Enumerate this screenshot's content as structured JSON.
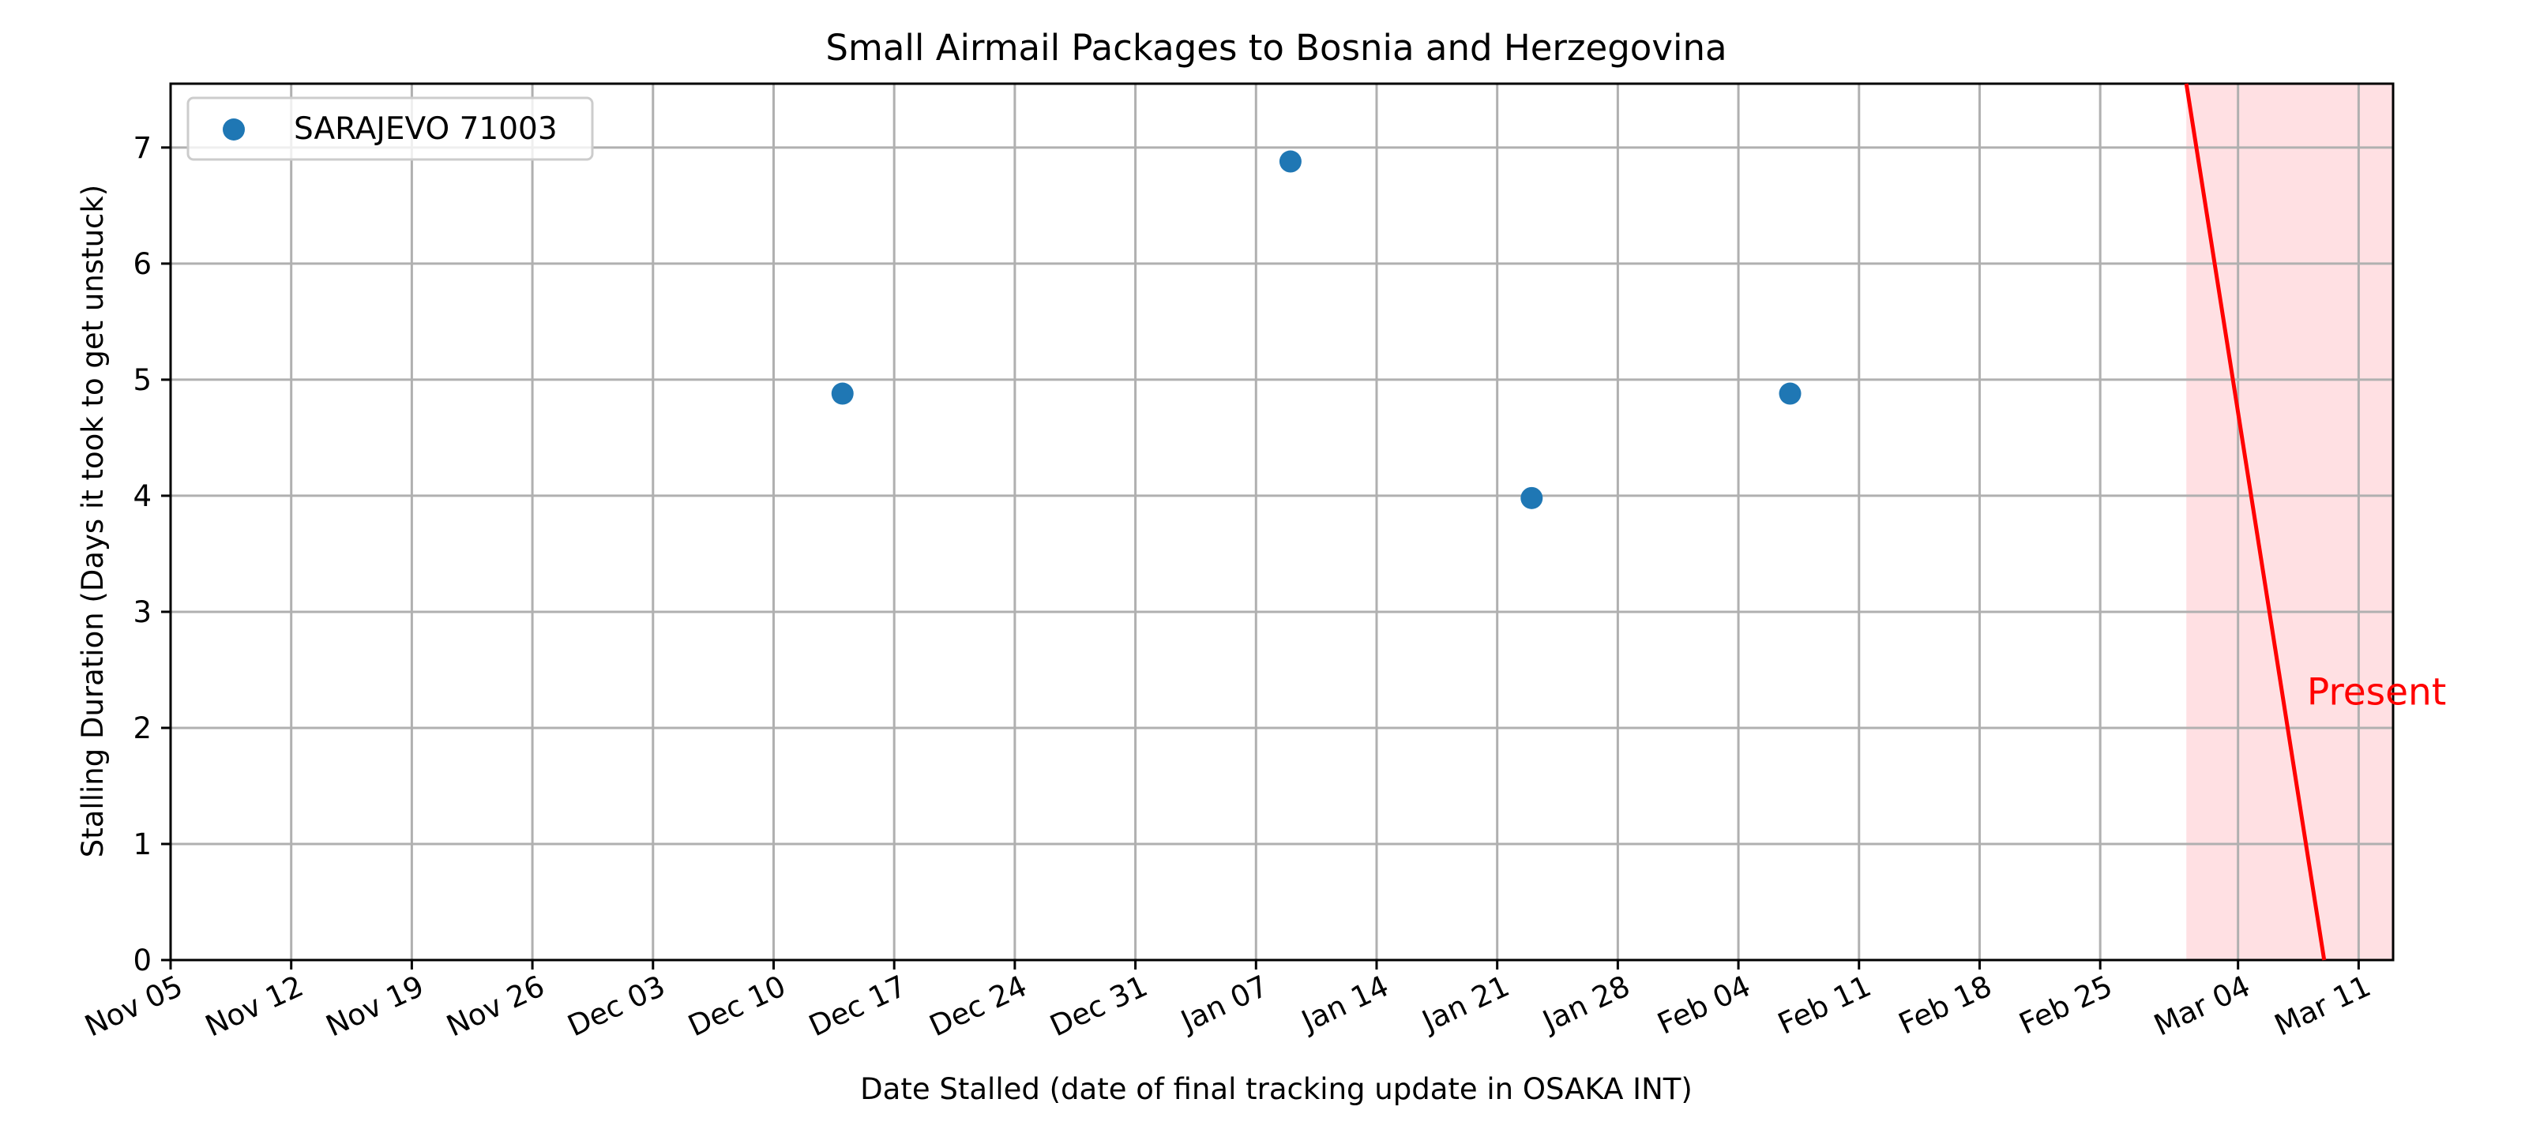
{
  "chart_data": {
    "type": "scatter",
    "title": "Small Airmail Packages to Bosnia and Herzegovina",
    "xlabel": "Date Stalled (date of final tracking update in OSAKA INT)",
    "ylabel": "Stalling Duration (Days it took to get unstuck)",
    "x_is_date": true,
    "xlim": [
      "2023-11-05",
      "2024-03-13"
    ],
    "ylim": [
      0,
      7.55
    ],
    "grid": true,
    "legend_placement": "top-left",
    "x_ticks": [
      {
        "date": "2023-11-05",
        "label": "Nov 05"
      },
      {
        "date": "2023-11-12",
        "label": "Nov 12"
      },
      {
        "date": "2023-11-19",
        "label": "Nov 19"
      },
      {
        "date": "2023-11-26",
        "label": "Nov 26"
      },
      {
        "date": "2023-12-03",
        "label": "Dec 03"
      },
      {
        "date": "2023-12-10",
        "label": "Dec 10"
      },
      {
        "date": "2023-12-17",
        "label": "Dec 17"
      },
      {
        "date": "2023-12-24",
        "label": "Dec 24"
      },
      {
        "date": "2023-12-31",
        "label": "Dec 31"
      },
      {
        "date": "2024-01-07",
        "label": "Jan 07"
      },
      {
        "date": "2024-01-14",
        "label": "Jan 14"
      },
      {
        "date": "2024-01-21",
        "label": "Jan 21"
      },
      {
        "date": "2024-01-28",
        "label": "Jan 28"
      },
      {
        "date": "2024-02-04",
        "label": "Feb 04"
      },
      {
        "date": "2024-02-11",
        "label": "Feb 11"
      },
      {
        "date": "2024-02-18",
        "label": "Feb 18"
      },
      {
        "date": "2024-02-25",
        "label": "Feb 25"
      },
      {
        "date": "2024-03-04",
        "label": "Mar 04"
      },
      {
        "date": "2024-03-11",
        "label": "Mar 11"
      }
    ],
    "y_ticks": [
      {
        "value": 0,
        "label": "0"
      },
      {
        "value": 1,
        "label": "1"
      },
      {
        "value": 2,
        "label": "2"
      },
      {
        "value": 3,
        "label": "3"
      },
      {
        "value": 4,
        "label": "4"
      },
      {
        "value": 5,
        "label": "5"
      },
      {
        "value": 6,
        "label": "6"
      },
      {
        "value": 7,
        "label": "7"
      }
    ],
    "series": [
      {
        "name": "SARAJEVO 71003",
        "color": "#1f77b4",
        "points": [
          {
            "x": "2023-12-14",
            "y": 4.88
          },
          {
            "x": "2024-01-09",
            "y": 6.88
          },
          {
            "x": "2024-01-23",
            "y": 3.98
          },
          {
            "x": "2024-02-07",
            "y": 4.88
          }
        ]
      }
    ],
    "present_marker": {
      "label": "Present",
      "color": "#ff0000",
      "shade_color": "#ffe0e3",
      "line": [
        {
          "x": "2024-03-01",
          "y": 7.55
        },
        {
          "x": "2024-03-09",
          "y": 0
        }
      ],
      "shade_start": "2024-03-01",
      "label_position": {
        "x": "2024-03-08",
        "y": 2.2
      }
    }
  }
}
